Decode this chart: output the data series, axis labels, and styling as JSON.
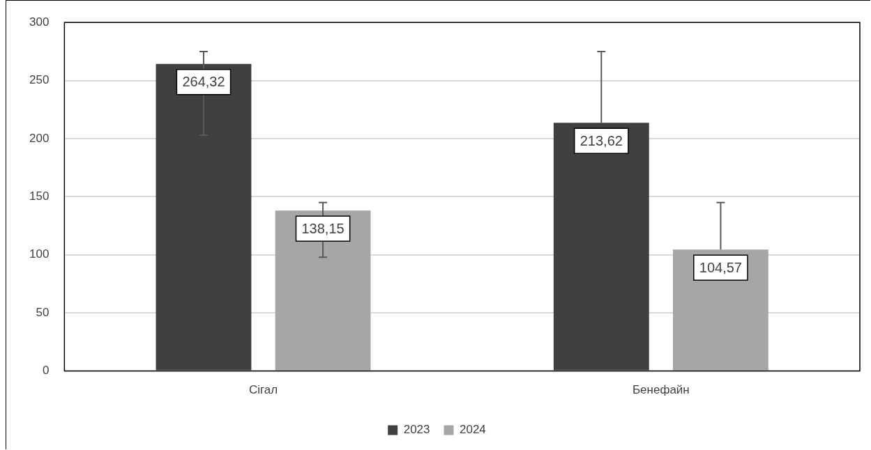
{
  "chart_data": {
    "type": "bar",
    "categories": [
      "Сігал",
      "Бенефайн"
    ],
    "series": [
      {
        "name": "2023",
        "color": "#404040",
        "values": [
          264.32,
          213.62
        ],
        "value_labels": [
          "264,32",
          "213,62"
        ],
        "errors": [
          [
            203,
            275
          ],
          [
            213.62,
            275
          ]
        ]
      },
      {
        "name": "2024",
        "color": "#a6a6a6",
        "values": [
          138.15,
          104.57
        ],
        "value_labels": [
          "138,15",
          "104,57"
        ],
        "errors": [
          [
            98,
            145
          ],
          [
            104.57,
            145
          ]
        ]
      }
    ],
    "ylim": [
      0,
      300
    ],
    "yticks": [
      0,
      50,
      100,
      150,
      200,
      250,
      300
    ],
    "grid": "y",
    "legend": "bottom"
  }
}
